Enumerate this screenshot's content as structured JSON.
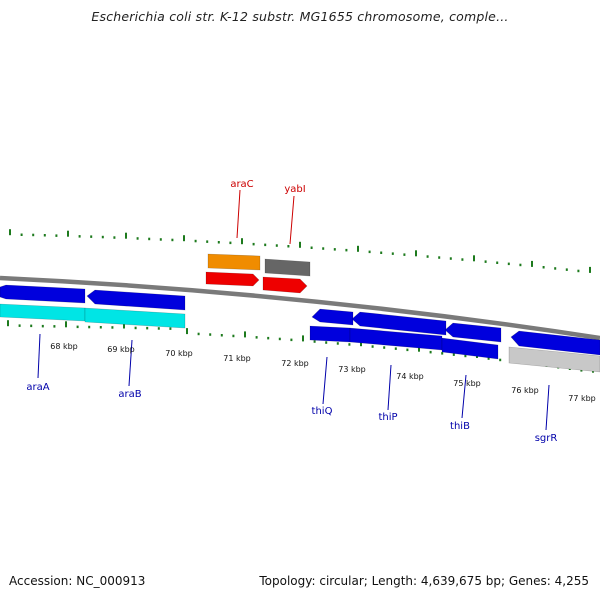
{
  "map": {
    "title": "Escherichia coli str. K-12 substr. MG1655 chromosome, comple...",
    "accession_label": "Accession: NC_000913",
    "summary": "Topology: circular; Length: 4,639,675 bp; Genes: 4,255"
  },
  "colors": {
    "backbone": "#7a7a7a",
    "tick": "#1d7a1d",
    "forward_gene": "#0000dd",
    "cyan_feature": "#00e5e5",
    "highlight_gene": "#f08c00",
    "grey_gene": "#666666",
    "red_feature": "#ee0000",
    "light_feature": "#c8c8c8",
    "label_red": "#cc0000",
    "label_blue": "#0000aa"
  },
  "scale_labels": [
    "68 kbp",
    "69 kbp",
    "70 kbp",
    "71 kbp",
    "72 kbp",
    "73 kbp",
    "74 kbp",
    "75 kbp",
    "76 kbp",
    "77 kbp"
  ],
  "gene_labels": {
    "top": [
      "araC",
      "yabI"
    ],
    "bottom": [
      "araA",
      "araB",
      "thiQ",
      "thiP",
      "thiB",
      "sgrR"
    ]
  }
}
